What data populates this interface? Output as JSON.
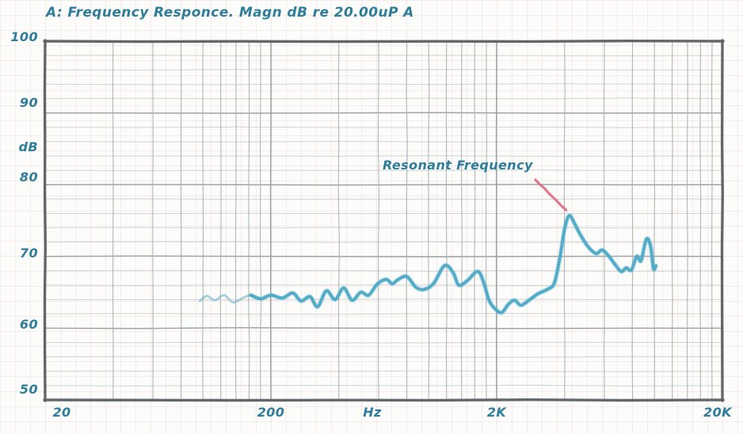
{
  "title": "A: Frequency Responce. Magn dB re 20.00uP A",
  "y_axis": {
    "unit": "dB",
    "tick_labels": [
      "100",
      "90",
      "80",
      "70",
      "60",
      "50"
    ]
  },
  "x_axis": {
    "unit": "Hz",
    "tick_labels": [
      "20",
      "200",
      "2K",
      "20K"
    ]
  },
  "annotation": {
    "label": "Resonant Frequency"
  },
  "colors": {
    "ink": "#2e7e9b",
    "curve": "#4ca9c7",
    "callout": "#dd7388",
    "border": "#5f6264",
    "grid_major": "#9aa0a2",
    "grid_minor": "#cbcecf",
    "paper": "#fcfcfa",
    "paper_grid_tint": "#d09ea2"
  },
  "chart_data": {
    "type": "line",
    "title": "A: Frequency Responce. Magn dB re 20.00uP A",
    "xlabel": "Hz",
    "ylabel": "dB",
    "x_scale": "log",
    "xlim": [
      20,
      20000
    ],
    "ylim": [
      50,
      100
    ],
    "x_tick_labels": [
      "20",
      "200",
      "2K",
      "20K"
    ],
    "y_ticks": [
      50,
      60,
      70,
      80,
      90,
      100
    ],
    "y_minor_step_db": 2,
    "grid": true,
    "legend": "none",
    "annotations": [
      {
        "text": "Resonant Frequency",
        "x": 4200,
        "y": 75.7
      }
    ],
    "series": [
      {
        "name": "Frequency Response (Magn dB re 20.00uP)",
        "color": "#4ca9c7",
        "points": [
          [
            97,
            63.8
          ],
          [
            104,
            64.5
          ],
          [
            113,
            63.9
          ],
          [
            124,
            64.6
          ],
          [
            136,
            63.6
          ],
          [
            150,
            64.2
          ],
          [
            163,
            64.6
          ],
          [
            180,
            64.1
          ],
          [
            200,
            64.6
          ],
          [
            225,
            64.2
          ],
          [
            250,
            64.9
          ],
          [
            272,
            63.8
          ],
          [
            298,
            64.4
          ],
          [
            322,
            63.0
          ],
          [
            352,
            65.2
          ],
          [
            385,
            64.0
          ],
          [
            420,
            65.6
          ],
          [
            458,
            63.9
          ],
          [
            500,
            65.0
          ],
          [
            542,
            64.6
          ],
          [
            590,
            66.1
          ],
          [
            648,
            66.8
          ],
          [
            690,
            66.2
          ],
          [
            733,
            66.8
          ],
          [
            800,
            67.2
          ],
          [
            878,
            65.7
          ],
          [
            952,
            65.4
          ],
          [
            1050,
            66.2
          ],
          [
            1150,
            68.4
          ],
          [
            1210,
            68.7
          ],
          [
            1290,
            67.6
          ],
          [
            1360,
            66.0
          ],
          [
            1480,
            66.6
          ],
          [
            1650,
            67.9
          ],
          [
            1760,
            66.2
          ],
          [
            1850,
            63.9
          ],
          [
            1980,
            62.6
          ],
          [
            2110,
            62.2
          ],
          [
            2250,
            63.3
          ],
          [
            2400,
            63.9
          ],
          [
            2560,
            63.2
          ],
          [
            2780,
            63.9
          ],
          [
            3050,
            64.8
          ],
          [
            3350,
            65.4
          ],
          [
            3600,
            66.3
          ],
          [
            3820,
            70.0
          ],
          [
            4010,
            74.0
          ],
          [
            4200,
            75.7
          ],
          [
            4440,
            74.5
          ],
          [
            4700,
            73.0
          ],
          [
            5100,
            71.3
          ],
          [
            5520,
            70.4
          ],
          [
            5850,
            70.9
          ],
          [
            6220,
            70.2
          ],
          [
            6650,
            69.0
          ],
          [
            7120,
            67.9
          ],
          [
            7500,
            68.4
          ],
          [
            7900,
            68.1
          ],
          [
            8350,
            70.0
          ],
          [
            8720,
            69.4
          ],
          [
            9200,
            72.4
          ],
          [
            9600,
            71.5
          ],
          [
            9900,
            68.3
          ],
          [
            10150,
            68.7
          ]
        ]
      }
    ]
  }
}
